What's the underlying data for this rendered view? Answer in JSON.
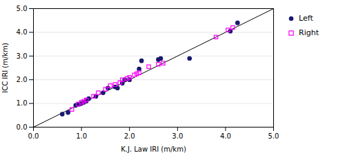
{
  "chart_data": {
    "type": "scatter",
    "xlabel": "K.J. Law IRI (m/km)",
    "ylabel": "ICC IRI (m/km)",
    "xlim": [
      0.0,
      5.0
    ],
    "ylim": [
      0.0,
      5.0
    ],
    "xticks": [
      {
        "value": 0.0,
        "label": "0.0"
      },
      {
        "value": 1.0,
        "label": "1.0"
      },
      {
        "value": 2.0,
        "label": "2.0"
      },
      {
        "value": 3.0,
        "label": "3.0"
      },
      {
        "value": 4.0,
        "label": "4.0"
      },
      {
        "value": 5.0,
        "label": "5.0"
      }
    ],
    "yticks": [
      {
        "value": 0.0,
        "label": "0.0"
      },
      {
        "value": 1.0,
        "label": "1.0"
      },
      {
        "value": 2.0,
        "label": "2.0"
      },
      {
        "value": 3.0,
        "label": "3.0"
      },
      {
        "value": 4.0,
        "label": "4.0"
      },
      {
        "value": 5.0,
        "label": "5.0"
      }
    ],
    "grid": "y",
    "legend": "right",
    "reference_line": {
      "x": [
        0.0,
        5.0
      ],
      "y": [
        0.0,
        5.0
      ],
      "color": "#000000"
    },
    "series": [
      {
        "name": "Left",
        "color": "#191970",
        "marker": "circle",
        "x": [
          0.6,
          0.72,
          0.88,
          0.95,
          1.0,
          1.05,
          1.1,
          1.15,
          1.3,
          1.45,
          1.55,
          1.7,
          1.75,
          1.85,
          1.9,
          2.0,
          2.2,
          2.25,
          2.6,
          2.65,
          3.25,
          4.1,
          4.25
        ],
        "values": [
          0.55,
          0.62,
          0.92,
          0.97,
          1.0,
          1.05,
          1.1,
          1.2,
          1.3,
          1.45,
          1.65,
          1.7,
          1.65,
          1.85,
          2.0,
          2.0,
          2.45,
          2.8,
          2.85,
          2.9,
          2.9,
          4.05,
          4.4
        ]
      },
      {
        "name": "Right",
        "color": "#FF00FF",
        "marker": "square_open",
        "x": [
          0.8,
          0.93,
          1.0,
          1.05,
          1.1,
          1.25,
          1.35,
          1.5,
          1.6,
          1.7,
          1.8,
          1.85,
          1.95,
          2.0,
          2.1,
          2.15,
          2.2,
          2.4,
          2.6,
          2.7,
          3.8,
          4.05,
          4.15
        ],
        "values": [
          0.75,
          0.97,
          1.05,
          1.1,
          1.15,
          1.3,
          1.45,
          1.6,
          1.75,
          1.8,
          1.88,
          2.0,
          2.05,
          2.1,
          2.2,
          2.25,
          2.3,
          2.55,
          2.65,
          2.7,
          3.8,
          4.1,
          4.2
        ]
      }
    ]
  }
}
